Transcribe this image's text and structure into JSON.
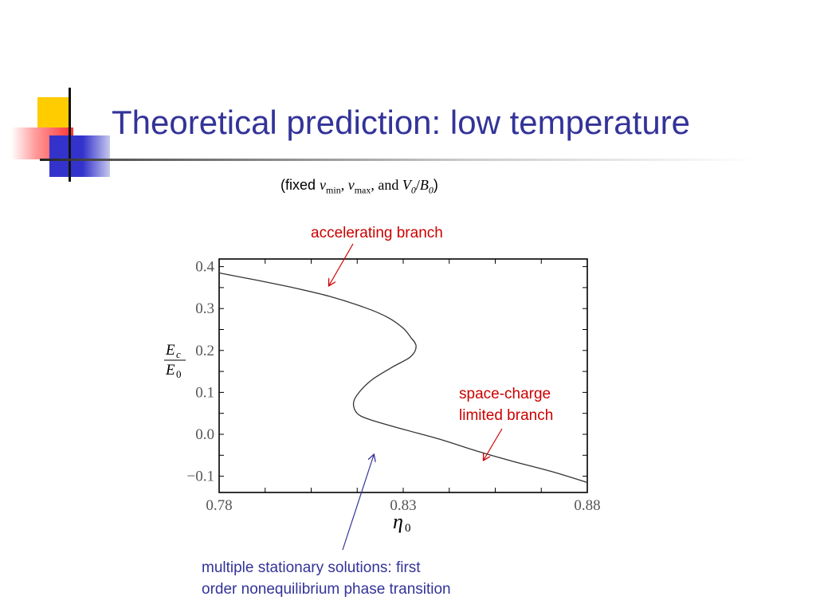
{
  "slide": {
    "title": "Theoretical prediction: low temperature",
    "subtitle": {
      "prefix": "(fixed ",
      "v": "v",
      "min_sub": "min",
      "sep1": ", ",
      "max_sub": "max",
      "and": ", and ",
      "V": "V",
      "zero1": "0",
      "slash": "/",
      "B": "B",
      "zero2": "0",
      "suffix": ")"
    },
    "accent_colors": {
      "title": "#333399",
      "red_annotation": "#cc0000",
      "blue_annotation": "#333399",
      "deco_yellow": "#ffcc00",
      "deco_red": "#ff3333",
      "deco_blue": "#3333cc"
    }
  },
  "annotations": {
    "accelerating": "accelerating branch",
    "space_charge_line1": "space-charge",
    "space_charge_line2": "limited branch",
    "multiple_line1": "multiple stationary solutions: first",
    "multiple_line2": "order nonequilibrium phase transition"
  },
  "chart_data": {
    "type": "line",
    "xlim": [
      0.78,
      0.88
    ],
    "ylim": [
      -0.12,
      0.42
    ],
    "x_ticks": [
      0.78,
      0.83,
      0.88
    ],
    "x_tick_labels": [
      "0.78",
      "0.83",
      "0.88"
    ],
    "y_ticks": [
      0.4,
      0.3,
      0.2,
      0.1,
      0.0,
      -0.1
    ],
    "y_tick_labels": [
      "0.4",
      "0.3",
      "0.2",
      "0.1",
      "0.0",
      "−0.1"
    ],
    "xlabel": "η₀",
    "ylabel": "Ec/E0",
    "grid": false,
    "series": [
      {
        "points": [
          [
            0.78,
            0.385
          ],
          [
            0.79,
            0.368
          ],
          [
            0.8,
            0.35
          ],
          [
            0.81,
            0.329
          ],
          [
            0.82,
            0.301
          ],
          [
            0.826,
            0.278
          ],
          [
            0.83,
            0.253
          ],
          [
            0.832,
            0.232
          ],
          [
            0.8335,
            0.21
          ],
          [
            0.832,
            0.185
          ],
          [
            0.827,
            0.16
          ],
          [
            0.8215,
            0.13
          ],
          [
            0.818,
            0.1
          ],
          [
            0.8165,
            0.075
          ],
          [
            0.8175,
            0.05
          ],
          [
            0.821,
            0.035
          ],
          [
            0.83,
            0.012
          ],
          [
            0.84,
            -0.012
          ],
          [
            0.85,
            -0.04
          ],
          [
            0.86,
            -0.065
          ],
          [
            0.87,
            -0.088
          ],
          [
            0.88,
            -0.115
          ]
        ]
      }
    ]
  }
}
